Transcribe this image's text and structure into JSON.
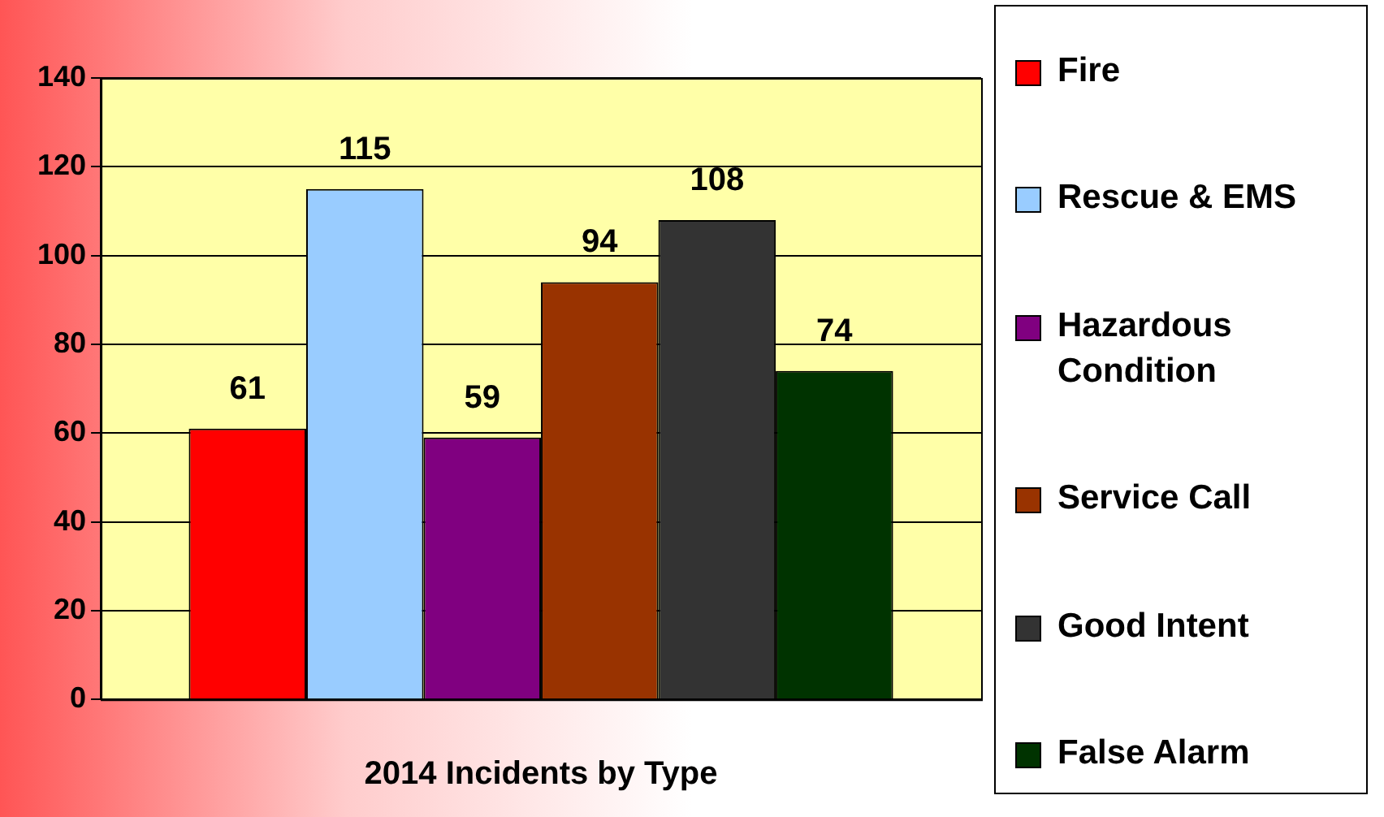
{
  "chart_data": {
    "type": "bar",
    "xlabel": "2014 Incidents by Type",
    "categories": [
      null
    ],
    "series": [
      {
        "name": "Fire",
        "color": "#ff0000",
        "values": [
          61
        ]
      },
      {
        "name": "Rescue & EMS",
        "color": "#99ccff",
        "values": [
          115
        ]
      },
      {
        "name": "Hazardous Condition",
        "color": "#800080",
        "values": [
          59
        ]
      },
      {
        "name": "Service Call",
        "color": "#993300",
        "values": [
          94
        ]
      },
      {
        "name": "Good Intent",
        "color": "#333333",
        "values": [
          108
        ]
      },
      {
        "name": "False Alarm",
        "color": "#003300",
        "values": [
          74
        ]
      }
    ],
    "ylim": [
      0,
      140
    ],
    "yticks": [
      0,
      20,
      40,
      60,
      80,
      100,
      120,
      140
    ],
    "grid": "y",
    "legend": "right",
    "data_labels": true
  }
}
